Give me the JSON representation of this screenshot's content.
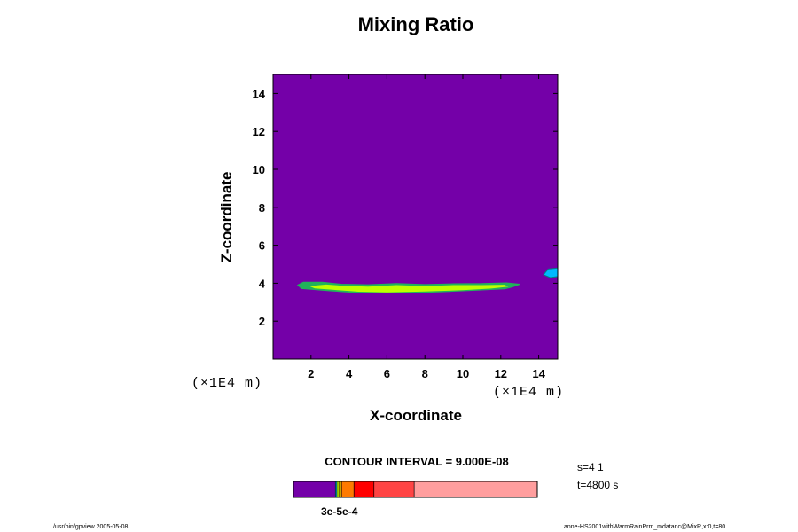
{
  "chart_data": {
    "type": "contour",
    "title": "Mixing Ratio",
    "xlabel": "X-coordinate",
    "ylabel": "Z-coordinate",
    "x_unit": "(×1E4 m)",
    "y_unit": "(×1E4 m)",
    "xlim": [
      0,
      15
    ],
    "ylim": [
      0,
      15
    ],
    "x_ticks": [
      2,
      4,
      6,
      8,
      10,
      12,
      14
    ],
    "y_ticks": [
      2,
      4,
      6,
      8,
      10,
      12,
      14
    ],
    "background_color": "#7400a8",
    "features": [
      {
        "name": "cloud-band",
        "fill": "#bfff00",
        "outline": "#21b35a",
        "outline_polygon": [
          [
            1.3,
            3.9
          ],
          [
            1.6,
            4.05
          ],
          [
            2.6,
            4.05
          ],
          [
            3.6,
            3.95
          ],
          [
            5,
            3.92
          ],
          [
            6.5,
            3.98
          ],
          [
            8,
            3.93
          ],
          [
            9.5,
            3.97
          ],
          [
            11,
            3.98
          ],
          [
            12.3,
            4.02
          ],
          [
            13.0,
            3.95
          ],
          [
            12.6,
            3.8
          ],
          [
            12.2,
            3.7
          ],
          [
            10.5,
            3.62
          ],
          [
            9,
            3.55
          ],
          [
            7.5,
            3.5
          ],
          [
            5.5,
            3.48
          ],
          [
            4.2,
            3.52
          ],
          [
            3.0,
            3.6
          ],
          [
            2.0,
            3.68
          ],
          [
            1.5,
            3.72
          ]
        ],
        "inner_polygon": [
          [
            1.9,
            3.85
          ],
          [
            2.8,
            3.93
          ],
          [
            3.8,
            3.86
          ],
          [
            5,
            3.82
          ],
          [
            6.5,
            3.9
          ],
          [
            8,
            3.85
          ],
          [
            9.5,
            3.9
          ],
          [
            11,
            3.9
          ],
          [
            12.2,
            3.92
          ],
          [
            12.4,
            3.82
          ],
          [
            11.5,
            3.72
          ],
          [
            10,
            3.63
          ],
          [
            8,
            3.56
          ],
          [
            6,
            3.52
          ],
          [
            4.5,
            3.55
          ],
          [
            3.2,
            3.65
          ],
          [
            2.2,
            3.73
          ]
        ]
      },
      {
        "name": "edge-patch",
        "fill": "#00b8ff",
        "outline": "#008080",
        "polygon": [
          [
            14.25,
            4.45
          ],
          [
            14.5,
            4.75
          ],
          [
            15,
            4.8
          ],
          [
            15,
            4.35
          ],
          [
            14.6,
            4.3
          ]
        ]
      }
    ],
    "colorbar": {
      "segments": [
        {
          "start": 0.0,
          "end": 0.172,
          "color": "#7400a8"
        },
        {
          "start": 0.172,
          "end": 0.178,
          "color": "#00b8ff"
        },
        {
          "start": 0.178,
          "end": 0.186,
          "color": "#bfff00"
        },
        {
          "start": 0.186,
          "end": 0.197,
          "color": "#f5c400"
        },
        {
          "start": 0.197,
          "end": 0.248,
          "color": "#ff7a00"
        },
        {
          "start": 0.248,
          "end": 0.33,
          "color": "#ff0000"
        },
        {
          "start": 0.33,
          "end": 0.495,
          "color": "#ff4444"
        },
        {
          "start": 0.495,
          "end": 1.0,
          "color": "#ff9e9e"
        }
      ],
      "label": "3e-5e-4"
    },
    "contour_interval": "CONTOUR INTERVAL = 9.000E-08",
    "step": "s=4 1",
    "time": "t=4800 s"
  },
  "footer": {
    "left": "/usr/bin/gpview 2005-05-08",
    "right": "anne-HS2001withWarmRainPrm_mdatanc@MixR,x:0,t=80"
  }
}
